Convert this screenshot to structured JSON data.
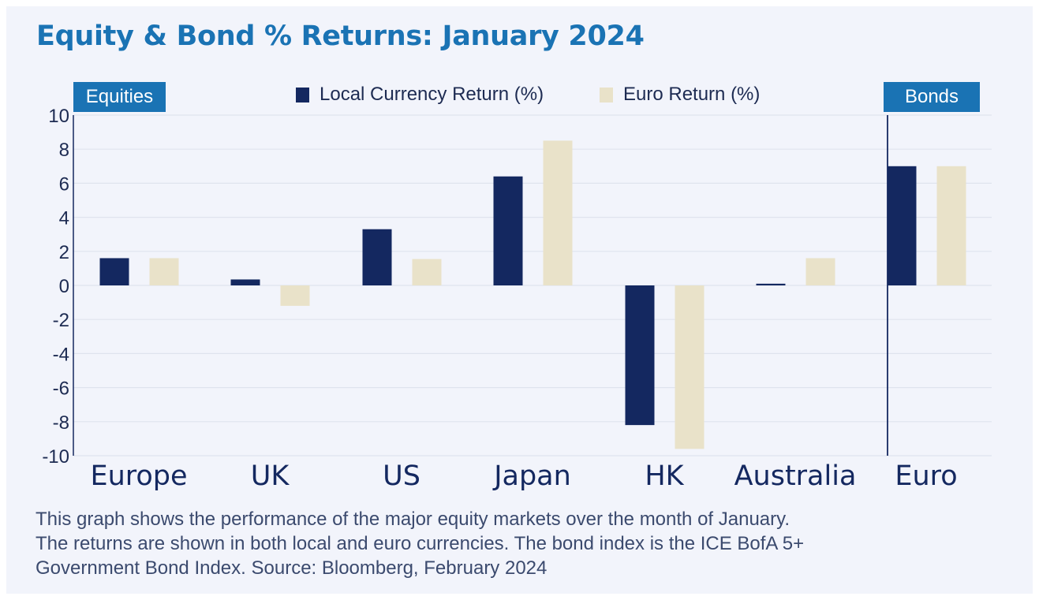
{
  "title": "Equity & Bond % Returns: January 2024",
  "tags": {
    "equities": "Equities",
    "bonds": "Bonds"
  },
  "colors": {
    "local": "#142860",
    "euro": "#e9e2c9",
    "accent": "#1a73b4",
    "background": "#f2f4fb"
  },
  "caption": [
    "This graph shows the performance of the major equity markets over the month of January.",
    "The returns are shown in both local and euro currencies. The bond index is the ICE BofA 5+",
    "Government Bond Index. Source: Bloomberg, February 2024"
  ],
  "chart_data": {
    "type": "bar",
    "categories": [
      "Europe",
      "UK",
      "US",
      "Japan",
      "HK",
      "Australia",
      "Euro"
    ],
    "series": [
      {
        "name": "Local Currency Return (%)",
        "values": [
          1.6,
          0.35,
          3.3,
          6.4,
          -8.2,
          0.1,
          7.0
        ]
      },
      {
        "name": "Euro Return (%)",
        "values": [
          1.6,
          -1.2,
          1.55,
          8.5,
          -9.6,
          1.6,
          7.0
        ]
      }
    ],
    "yticks": [
      "10",
      "8",
      "6",
      "4",
      "2",
      "0",
      "-2",
      "-4",
      "-6",
      "-8",
      "-10"
    ],
    "ylim": [
      -10,
      10
    ],
    "grid": true,
    "legend": "top-center"
  }
}
